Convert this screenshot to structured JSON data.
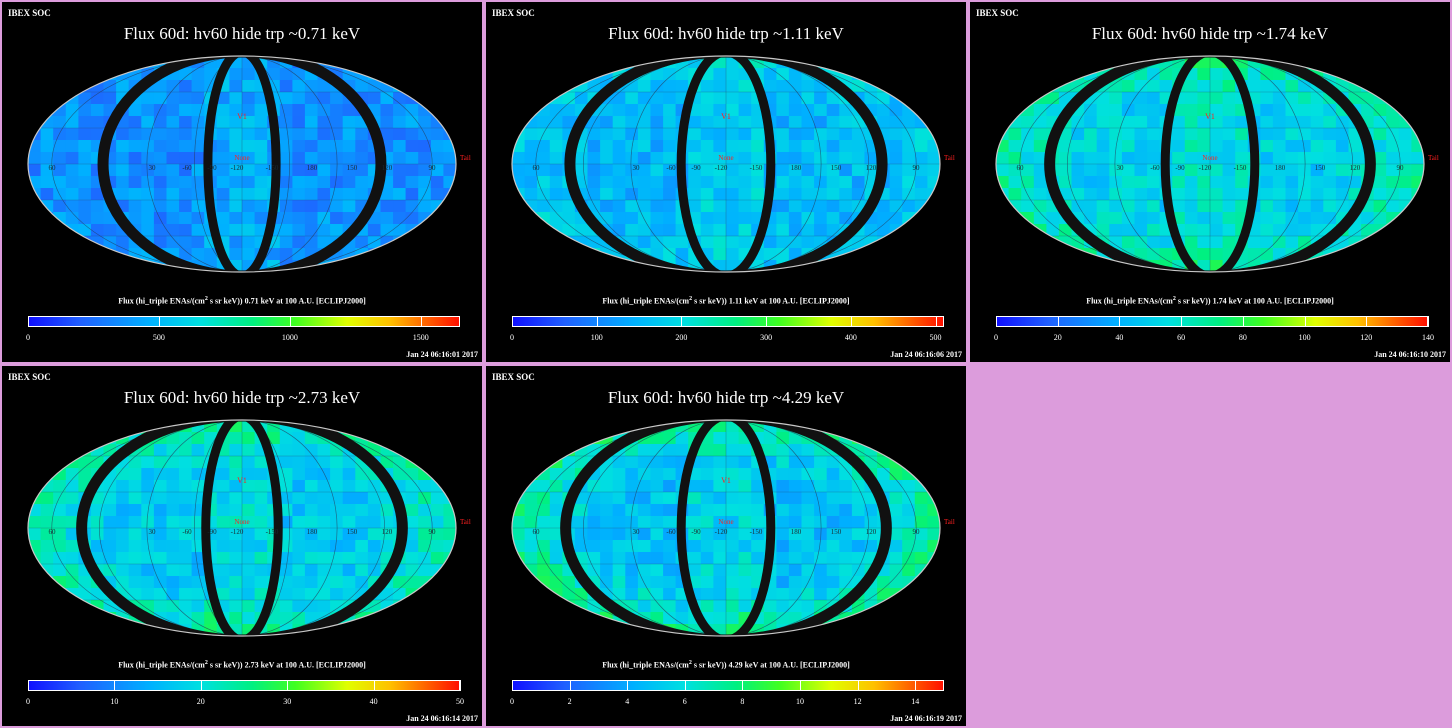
{
  "panels": [
    {
      "header": "IBEX SOC",
      "title": "Flux   60d: hv60 hide trp ~0.71 keV",
      "caption_a": "Flux (hi_triple ENAs/(cm",
      "caption_b": " s sr keV))  0.71 keV at 100 A.U. [ECLIPJ2000]",
      "ticks": [
        "0",
        "500",
        "1000",
        "1500"
      ],
      "tick_max": 1650,
      "tick_values": [
        0,
        500,
        1000,
        1500
      ],
      "date": "Jan 24 06:16:01 2017",
      "seed": 11,
      "base": 0.22,
      "stripes": [
        -0.15,
        0.64
      ],
      "rim": 0.0
    },
    {
      "header": "IBEX SOC",
      "title": "Flux   60d: hv60 hide trp ~1.11 keV",
      "caption_a": "Flux (hi_triple ENAs/(cm",
      "caption_b": " s sr keV))  1.11 keV at 100 A.U. [ECLIPJ2000]",
      "ticks": [
        "0",
        "100",
        "200",
        "300",
        "400",
        "500"
      ],
      "tick_max": 510,
      "tick_values": [
        0,
        100,
        200,
        300,
        400,
        500
      ],
      "date": "Jan 24 06:16:06 2017",
      "seed": 23,
      "base": 0.3,
      "stripes": [
        -0.2,
        0.72
      ],
      "rim": 0.05
    },
    {
      "header": "IBEX SOC",
      "title": "Flux   60d: hv60 hide trp ~1.74 keV",
      "caption_a": "Flux (hi_triple ENAs/(cm",
      "caption_b": " s sr keV))  1.74 keV at 100 A.U. [ECLIPJ2000]",
      "ticks": [
        "0",
        "20",
        "40",
        "60",
        "80",
        "100",
        "120",
        "140"
      ],
      "tick_max": 140,
      "tick_values": [
        0,
        20,
        40,
        60,
        80,
        100,
        120,
        140
      ],
      "date": "Jan 24 06:16:10 2017",
      "seed": 37,
      "base": 0.36,
      "stripes": [
        -0.2,
        0.74
      ],
      "rim": 0.12
    },
    {
      "header": "IBEX SOC",
      "title": "Flux   60d: hv60 hide trp ~2.73 keV",
      "caption_a": "Flux (hi_triple ENAs/(cm",
      "caption_b": " s sr keV))  2.73 keV at 100 A.U. [ECLIPJ2000]",
      "ticks": [
        "0",
        "10",
        "20",
        "30",
        "40",
        "50"
      ],
      "tick_max": 50,
      "tick_values": [
        0,
        10,
        20,
        30,
        40,
        50
      ],
      "date": "Jan 24 06:16:14 2017",
      "seed": 51,
      "base": 0.34,
      "stripes": [
        -0.16,
        0.74
      ],
      "rim": 0.14
    },
    {
      "header": "IBEX SOC",
      "title": "Flux   60d: hv60 hide trp ~4.29 keV",
      "caption_a": "Flux (hi_triple ENAs/(cm",
      "caption_b": " s sr keV))  4.29 keV at 100 A.U. [ECLIPJ2000]",
      "ticks": [
        "0",
        "2",
        "4",
        "6",
        "8",
        "10",
        "12",
        "14"
      ],
      "tick_max": 15,
      "tick_values": [
        0,
        2,
        4,
        6,
        8,
        10,
        12,
        14
      ],
      "date": "Jan 24 06:16:19 2017",
      "seed": 67,
      "base": 0.32,
      "stripes": [
        -0.2,
        0.74
      ],
      "rim": 0.2
    }
  ],
  "map_labels": {
    "v1": "V1",
    "none": "None",
    "tail": "Tail",
    "lon": [
      "60",
      "30",
      "-60",
      "-90",
      "-120",
      "-150",
      "180",
      "150",
      "120",
      "90"
    ]
  },
  "colors": {
    "page_bg": "#dc9cdc",
    "panel_bg": "#000000",
    "title": "#ffffff",
    "marker": "#ff2020"
  }
}
